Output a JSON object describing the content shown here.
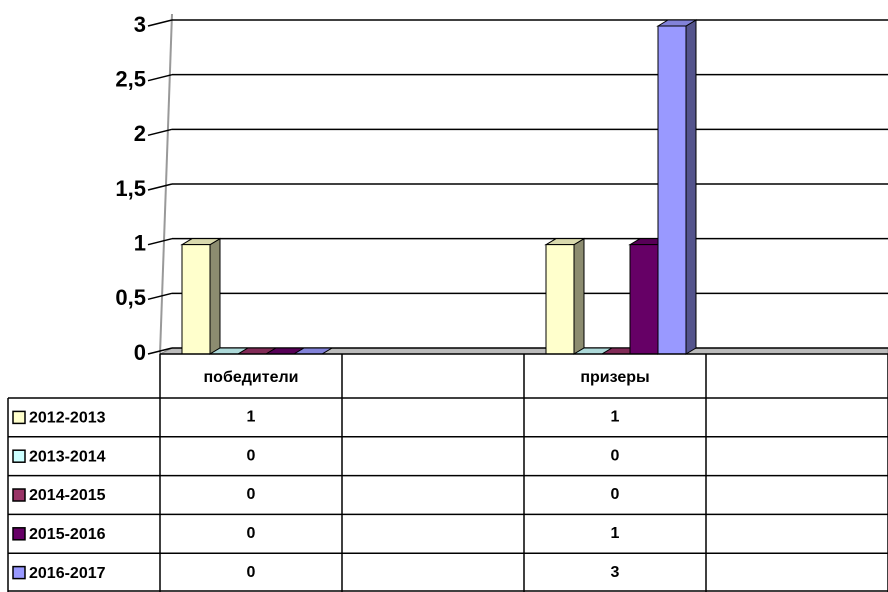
{
  "chart_data": {
    "type": "bar3d",
    "categories": [
      "победители",
      null,
      "призеры",
      null
    ],
    "series": [
      {
        "name": "2012-2013",
        "color": "#ffffcc",
        "values": [
          1,
          null,
          1,
          null
        ]
      },
      {
        "name": "2013-2014",
        "color": "#ccffff",
        "values": [
          0,
          null,
          0,
          null
        ]
      },
      {
        "name": "2014-2015",
        "color": "#993366",
        "values": [
          0,
          null,
          0,
          null
        ]
      },
      {
        "name": "2015-2016",
        "color": "#660066",
        "values": [
          0,
          null,
          1,
          null
        ]
      },
      {
        "name": "2016-2017",
        "color": "#9999ff",
        "values": [
          0,
          null,
          3,
          null
        ]
      }
    ],
    "ylim": [
      0,
      3
    ],
    "yticks": [
      0,
      {
        "value": 0.5,
        "label": "0,5"
      },
      1,
      {
        "value": 1.5,
        "label": "1,5"
      },
      2,
      {
        "value": 2.5,
        "label": "2,5"
      },
      3
    ],
    "grid": true,
    "data_table": true
  }
}
